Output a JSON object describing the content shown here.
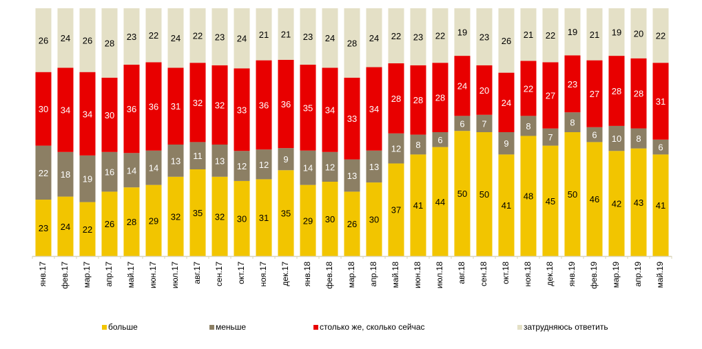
{
  "chart_data": {
    "type": "bar",
    "stacked": true,
    "percent": true,
    "title": "",
    "xlabel": "",
    "ylabel": "",
    "ylim": [
      0,
      100
    ],
    "grid": false,
    "legend_position": "bottom",
    "categories": [
      "янв.17",
      "фев.17",
      "мар.17",
      "апр.17",
      "май.17",
      "июн.17",
      "июл.17",
      "авг.17",
      "сен.17",
      "окт.17",
      "ноя.17",
      "дек.17",
      "янв.18",
      "фев.18",
      "мар.18",
      "апр.18",
      "май.18",
      "июн.18",
      "июл.18",
      "авг.18",
      "сен.18",
      "окт.18",
      "ноя.18",
      "дек.18",
      "янв.19",
      "фев.19",
      "мар.19",
      "апр.19",
      "май.19"
    ],
    "series": [
      {
        "name": "больше",
        "color": "#f2c500",
        "label_color": "#000000",
        "values": [
          23,
          24,
          22,
          26,
          28,
          29,
          32,
          35,
          32,
          30,
          31,
          35,
          29,
          30,
          26,
          30,
          37,
          41,
          44,
          50,
          50,
          41,
          48,
          45,
          50,
          46,
          42,
          43,
          41
        ]
      },
      {
        "name": "меньше",
        "color": "#8c7f64",
        "label_color": "#ffffff",
        "values": [
          22,
          18,
          19,
          16,
          14,
          14,
          13,
          11,
          13,
          12,
          12,
          9,
          14,
          12,
          13,
          13,
          12,
          8,
          6,
          6,
          7,
          9,
          8,
          7,
          8,
          6,
          10,
          8,
          6
        ]
      },
      {
        "name": "столько же, сколько сейчас",
        "color": "#e80000",
        "label_color": "#ffffff",
        "values": [
          30,
          34,
          34,
          30,
          36,
          36,
          31,
          32,
          32,
          33,
          36,
          36,
          35,
          34,
          33,
          34,
          28,
          28,
          28,
          24,
          20,
          24,
          22,
          27,
          23,
          27,
          28,
          28,
          31
        ]
      },
      {
        "name": "затрудняюсь ответить",
        "color": "#e4e0c6",
        "label_color": "#000000",
        "values": [
          26,
          24,
          26,
          28,
          23,
          22,
          24,
          22,
          23,
          24,
          21,
          21,
          23,
          24,
          28,
          24,
          22,
          23,
          22,
          19,
          23,
          26,
          21,
          22,
          19,
          21,
          19,
          20,
          22
        ]
      }
    ]
  }
}
